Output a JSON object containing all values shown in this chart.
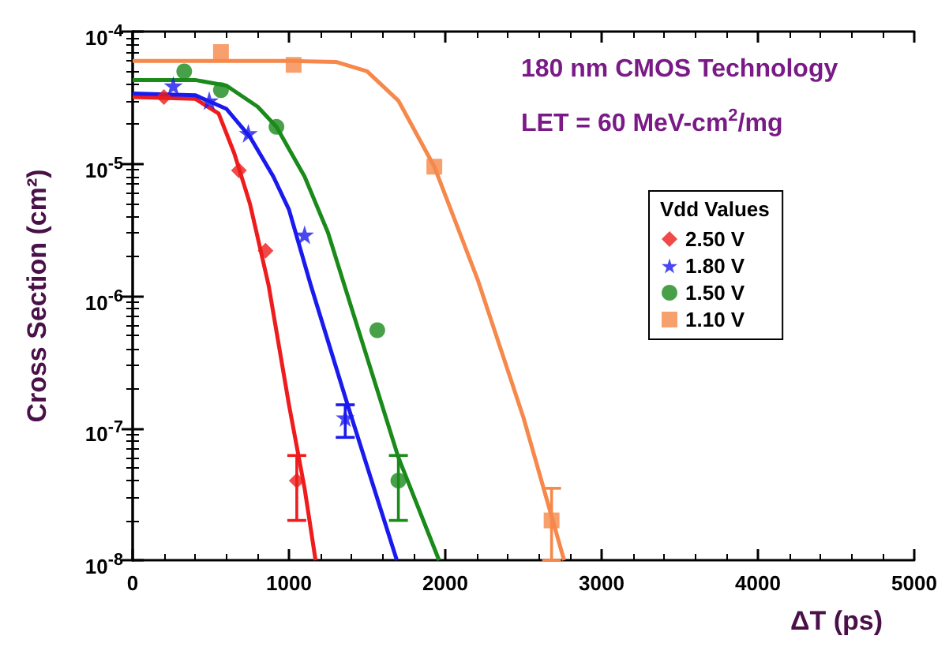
{
  "chart_data": {
    "type": "scatter",
    "xlabel": "ΔT (ps)",
    "ylabel": "Cross Section (cm²)",
    "legend_title": "Vdd Values",
    "annotations": [
      "180 nm CMOS Technology",
      "LET = 60 MeV-cm$^{2}$/mg"
    ],
    "xlim": [
      0,
      5000
    ],
    "xticks": [
      0,
      1000,
      2000,
      3000,
      4000,
      5000
    ],
    "ylim": [
      1e-08,
      0.0001
    ],
    "log": "y",
    "yticks": [
      {
        "value": 1e-08,
        "label": "10$^{-8}$"
      },
      {
        "value": 1e-07,
        "label": "10$^{-7}$"
      },
      {
        "value": 1e-06,
        "label": "10$^{-6}$"
      },
      {
        "value": 1e-05,
        "label": "10$^{-5}$"
      },
      {
        "value": 0.0001,
        "label": "10$^{-4}$"
      }
    ],
    "grid": false,
    "legend": "right",
    "series": [
      {
        "name": "2.50 V",
        "color": "#ee1c1c",
        "marker": "diamond",
        "x": [
          200,
          680,
          850,
          1050
        ],
        "values": [
          3.2e-05,
          8.9e-06,
          2.2e-06,
          4e-08
        ],
        "errors": [
          null,
          null,
          null,
          [
            2e-08,
            6.2e-08
          ]
        ]
      },
      {
        "name": "1.80 V",
        "color": "#1a1aee",
        "marker": "star",
        "x": [
          260,
          490,
          740,
          1100,
          1360
        ],
        "values": [
          3.9e-05,
          3e-05,
          1.7e-05,
          2.9e-06,
          1.2e-07
        ],
        "errors": [
          null,
          null,
          null,
          null,
          [
            8.5e-08,
            1.5e-07
          ]
        ]
      },
      {
        "name": "1.50 V",
        "color": "#1a8a1a",
        "marker": "circle",
        "x": [
          330,
          565,
          920,
          1565,
          1700
        ],
        "values": [
          5e-05,
          3.6e-05,
          1.9e-05,
          5.5e-07,
          4e-08
        ],
        "errors": [
          null,
          null,
          null,
          null,
          [
            2e-08,
            6.2e-08
          ]
        ]
      },
      {
        "name": "1.10 V",
        "color": "#f5884a",
        "marker": "square",
        "x": [
          565,
          1030,
          1930,
          2680
        ],
        "values": [
          7e-05,
          5.6e-05,
          9.5e-06,
          2e-08
        ],
        "errors": [
          null,
          null,
          null,
          [
            1e-08,
            3.5e-08
          ]
        ]
      },
      {
        "type": "line",
        "color": "#ee1c1c",
        "marker": "none",
        "x": [
          0,
          400,
          550,
          650,
          750,
          870,
          1000,
          1100,
          1170
        ],
        "values": [
          3.2e-05,
          3.1e-05,
          2.4e-05,
          1.2e-05,
          5e-06,
          1.2e-06,
          1.5e-07,
          3.5e-08,
          1e-08
        ]
      },
      {
        "type": "line",
        "color": "#1a1aee",
        "marker": "none",
        "x": [
          0,
          400,
          600,
          750,
          900,
          1000,
          1140,
          1375,
          1690
        ],
        "values": [
          3.4e-05,
          3.3e-05,
          2.6e-05,
          1.6e-05,
          8e-06,
          4.5e-06,
          1.2e-06,
          1.5e-07,
          1e-08
        ]
      },
      {
        "type": "line",
        "color": "#1a8a1a",
        "marker": "none",
        "x": [
          0,
          400,
          600,
          800,
          920,
          1100,
          1250,
          1355,
          1700,
          1960
        ],
        "values": [
          4.3e-05,
          4.3e-05,
          3.9e-05,
          2.7e-05,
          1.9e-05,
          8e-06,
          3e-06,
          1.2e-06,
          6e-08,
          1e-08
        ]
      },
      {
        "type": "line",
        "color": "#f5884a",
        "marker": "none",
        "x": [
          0,
          1000,
          1300,
          1500,
          1700,
          1930,
          2210,
          2500,
          2760
        ],
        "values": [
          6e-05,
          6e-05,
          5.9e-05,
          5e-05,
          3e-05,
          9.5e-06,
          1.3e-06,
          1.2e-07,
          1e-08
        ]
      }
    ]
  }
}
